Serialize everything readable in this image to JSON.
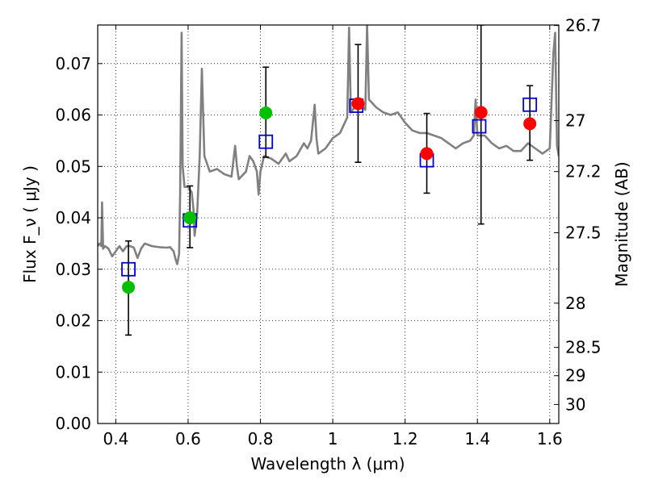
{
  "chart_data": {
    "type": "scatter",
    "xlabel": "Wavelength λ (μm)",
    "ylabel": "Flux F_ν ( μJy )",
    "ylabel_right": "Magnitude (AB)",
    "xlim": [
      0.35,
      1.625
    ],
    "ylim": [
      0.0,
      0.0775
    ],
    "grid": true,
    "x_ticks": [
      0.4,
      0.6,
      0.8,
      1.0,
      1.2,
      1.4,
      1.6
    ],
    "x_tick_labels": [
      "0.4",
      "0.6",
      "0.8",
      "1",
      "1.2",
      "1.4",
      "1.6"
    ],
    "y_ticks": [
      0.0,
      0.01,
      0.02,
      0.03,
      0.04,
      0.05,
      0.06,
      0.07
    ],
    "y_tick_labels": [
      "0.00",
      "0.01",
      "0.02",
      "0.03",
      "0.04",
      "0.05",
      "0.06",
      "0.07"
    ],
    "mag_ticks": [
      {
        "label": "26.7",
        "flux": 0.0774
      },
      {
        "label": "27",
        "flux": 0.0589
      },
      {
        "label": "27.2",
        "flux": 0.049
      },
      {
        "label": "27.5",
        "flux": 0.0371
      },
      {
        "label": "28",
        "flux": 0.0234
      },
      {
        "label": "28.5",
        "flux": 0.0148
      },
      {
        "label": "29",
        "flux": 0.0093
      },
      {
        "label": "30",
        "flux": 0.0037
      }
    ],
    "series": [
      {
        "kind": "line",
        "color": "#808080",
        "points": [
          [
            0.35,
            0.0345
          ],
          [
            0.355,
            0.035
          ],
          [
            0.36,
            0.0345
          ],
          [
            0.362,
            0.043
          ],
          [
            0.365,
            0.034
          ],
          [
            0.37,
            0.0345
          ],
          [
            0.38,
            0.034
          ],
          [
            0.39,
            0.0325
          ],
          [
            0.4,
            0.0335
          ],
          [
            0.41,
            0.0345
          ],
          [
            0.42,
            0.0335
          ],
          [
            0.43,
            0.0345
          ],
          [
            0.44,
            0.0345
          ],
          [
            0.45,
            0.0342
          ],
          [
            0.46,
            0.0322
          ],
          [
            0.47,
            0.034
          ],
          [
            0.48,
            0.035
          ],
          [
            0.5,
            0.0345
          ],
          [
            0.52,
            0.0343
          ],
          [
            0.54,
            0.0342
          ],
          [
            0.55,
            0.0343
          ],
          [
            0.56,
            0.0335
          ],
          [
            0.565,
            0.032
          ],
          [
            0.57,
            0.031
          ],
          [
            0.575,
            0.033
          ],
          [
            0.578,
            0.045
          ],
          [
            0.582,
            0.076
          ],
          [
            0.585,
            0.05
          ],
          [
            0.59,
            0.046
          ],
          [
            0.6,
            0.046
          ],
          [
            0.61,
            0.045
          ],
          [
            0.615,
            0.0415
          ],
          [
            0.618,
            0.0365
          ],
          [
            0.625,
            0.041
          ],
          [
            0.632,
            0.052
          ],
          [
            0.638,
            0.069
          ],
          [
            0.645,
            0.052
          ],
          [
            0.66,
            0.049
          ],
          [
            0.68,
            0.0495
          ],
          [
            0.7,
            0.0485
          ],
          [
            0.72,
            0.048
          ],
          [
            0.73,
            0.054
          ],
          [
            0.735,
            0.05
          ],
          [
            0.74,
            0.0475
          ],
          [
            0.76,
            0.049
          ],
          [
            0.77,
            0.052
          ],
          [
            0.78,
            0.051
          ],
          [
            0.79,
            0.049
          ],
          [
            0.795,
            0.0445
          ],
          [
            0.8,
            0.049
          ],
          [
            0.81,
            0.052
          ],
          [
            0.83,
            0.0515
          ],
          [
            0.85,
            0.0505
          ],
          [
            0.87,
            0.0525
          ],
          [
            0.88,
            0.051
          ],
          [
            0.9,
            0.052
          ],
          [
            0.92,
            0.0545
          ],
          [
            0.93,
            0.0535
          ],
          [
            0.94,
            0.055
          ],
          [
            0.95,
            0.062
          ],
          [
            0.955,
            0.0555
          ],
          [
            0.96,
            0.0525
          ],
          [
            0.98,
            0.0535
          ],
          [
            1.0,
            0.0555
          ],
          [
            1.02,
            0.0565
          ],
          [
            1.03,
            0.058
          ],
          [
            1.04,
            0.0595
          ],
          [
            1.045,
            0.077
          ],
          [
            1.05,
            0.0605
          ],
          [
            1.06,
            0.0615
          ],
          [
            1.08,
            0.062
          ],
          [
            1.09,
            0.061
          ],
          [
            1.095,
            0.0775
          ],
          [
            1.1,
            0.063
          ],
          [
            1.12,
            0.0615
          ],
          [
            1.14,
            0.0605
          ],
          [
            1.16,
            0.06
          ],
          [
            1.18,
            0.0605
          ],
          [
            1.2,
            0.0585
          ],
          [
            1.22,
            0.057
          ],
          [
            1.24,
            0.0565
          ],
          [
            1.26,
            0.0565
          ],
          [
            1.28,
            0.056
          ],
          [
            1.3,
            0.0555
          ],
          [
            1.32,
            0.0545
          ],
          [
            1.34,
            0.0535
          ],
          [
            1.36,
            0.0545
          ],
          [
            1.38,
            0.055
          ],
          [
            1.39,
            0.056
          ],
          [
            1.395,
            0.063
          ],
          [
            1.4,
            0.056
          ],
          [
            1.41,
            0.056
          ],
          [
            1.42,
            0.056
          ],
          [
            1.44,
            0.0545
          ],
          [
            1.46,
            0.0535
          ],
          [
            1.48,
            0.054
          ],
          [
            1.5,
            0.053
          ],
          [
            1.52,
            0.053
          ],
          [
            1.54,
            0.0545
          ],
          [
            1.56,
            0.0535
          ],
          [
            1.58,
            0.0525
          ],
          [
            1.6,
            0.0535
          ],
          [
            1.61,
            0.072
          ],
          [
            1.615,
            0.076
          ],
          [
            1.62,
            0.054
          ],
          [
            1.625,
            0.052
          ]
        ]
      },
      {
        "kind": "errorbar",
        "color": "#000000",
        "points": [
          {
            "x": 0.435,
            "y": 0.0265,
            "ylo": 0.0172,
            "yhi": 0.0355
          },
          {
            "x": 0.605,
            "y": 0.04,
            "ylo": 0.0342,
            "yhi": 0.0462
          },
          {
            "x": 0.815,
            "y": 0.0604,
            "ylo": 0.0518,
            "yhi": 0.0693
          },
          {
            "x": 1.07,
            "y": 0.0622,
            "ylo": 0.0508,
            "yhi": 0.0737
          },
          {
            "x": 1.26,
            "y": 0.0525,
            "ylo": 0.0448,
            "yhi": 0.0603
          },
          {
            "x": 1.41,
            "y": 0.0605,
            "ylo": 0.0388,
            "yhi": 0.0775
          },
          {
            "x": 1.545,
            "y": 0.0583,
            "ylo": 0.0512,
            "yhi": 0.0657
          }
        ]
      },
      {
        "kind": "square",
        "color": "#0000cc",
        "points": [
          [
            0.435,
            0.03
          ],
          [
            0.605,
            0.0395
          ],
          [
            0.815,
            0.0548
          ],
          [
            1.065,
            0.0618
          ],
          [
            1.26,
            0.0512
          ],
          [
            1.405,
            0.0578
          ],
          [
            1.545,
            0.062
          ]
        ]
      },
      {
        "kind": "circle",
        "color": "#00c000",
        "points": [
          [
            0.435,
            0.0265
          ],
          [
            0.605,
            0.04
          ],
          [
            0.815,
            0.0604
          ]
        ]
      },
      {
        "kind": "circle",
        "color": "#ff0000",
        "points": [
          [
            1.07,
            0.0622
          ],
          [
            1.26,
            0.0525
          ],
          [
            1.41,
            0.0605
          ],
          [
            1.545,
            0.0583
          ]
        ]
      }
    ]
  }
}
